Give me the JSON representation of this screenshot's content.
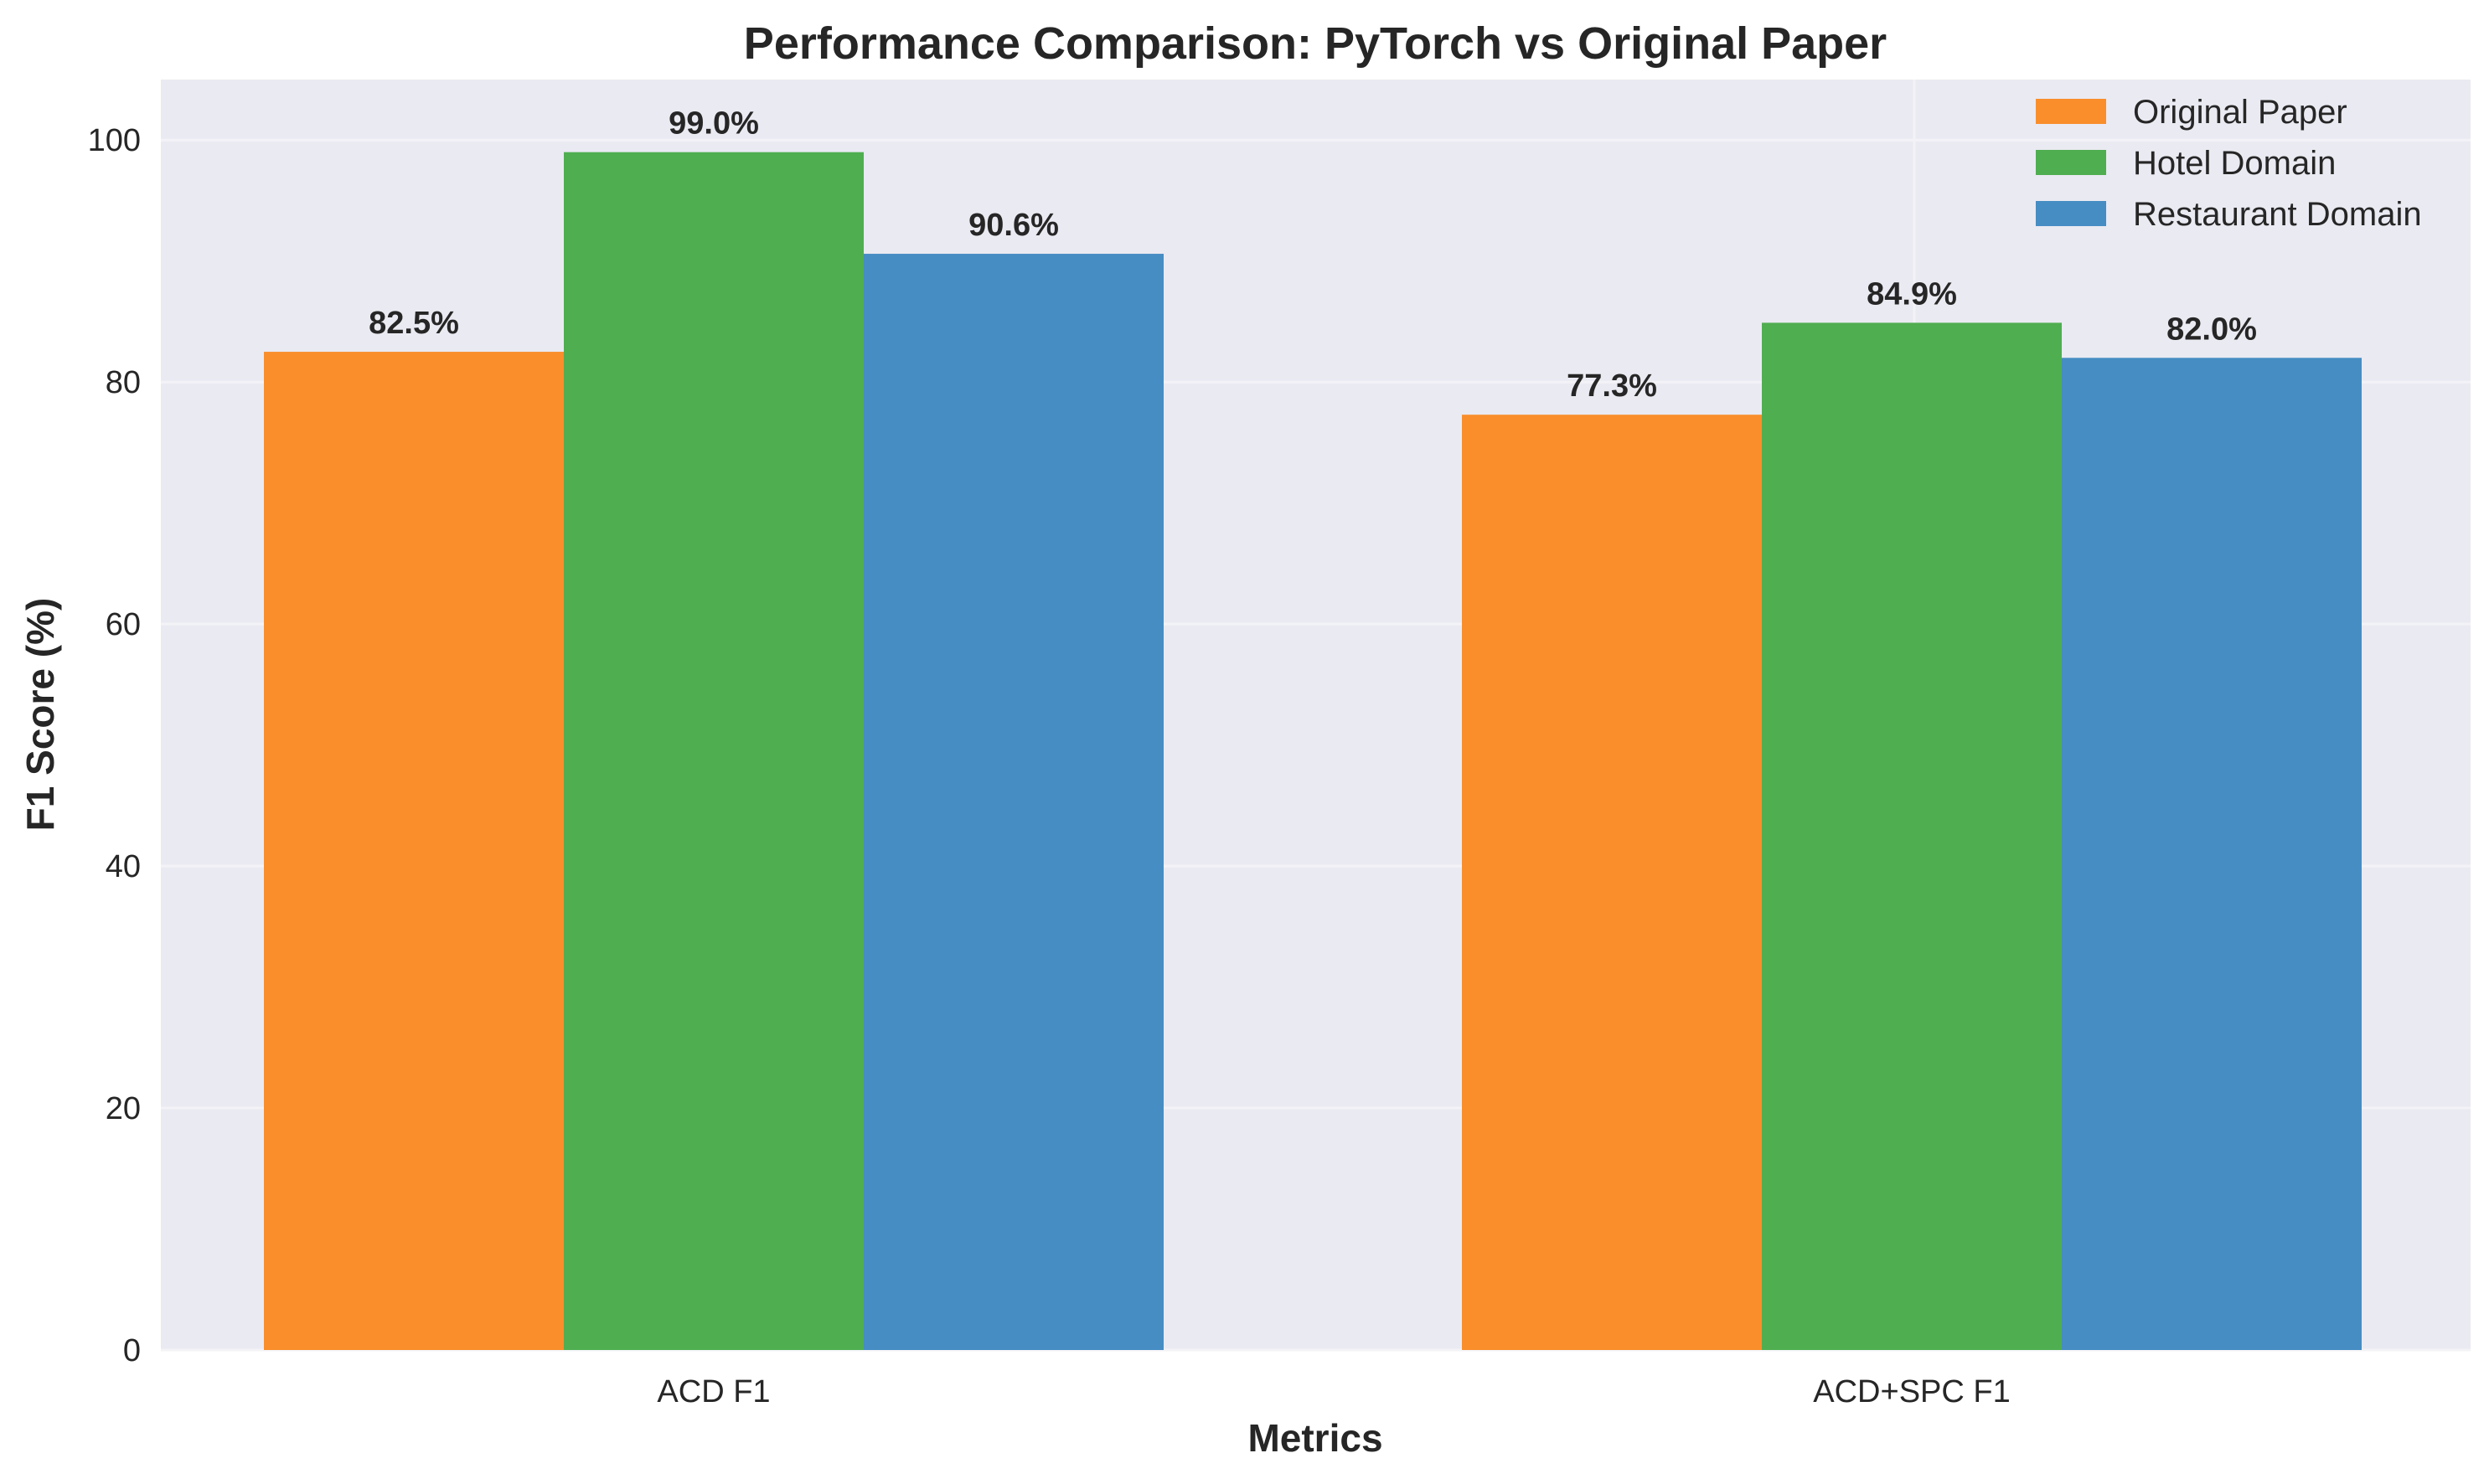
{
  "chart_data": {
    "type": "bar",
    "title": "Performance Comparison: PyTorch vs Original Paper",
    "xlabel": "Metrics",
    "ylabel": "F1 Score (%)",
    "categories": [
      "ACD F1",
      "ACD+SPC F1"
    ],
    "series": [
      {
        "name": "Original Paper",
        "values": [
          82.5,
          77.3
        ],
        "labels": [
          "82.5%",
          "77.3%"
        ],
        "color": "#f98e2b"
      },
      {
        "name": "Hotel Domain",
        "values": [
          99.0,
          84.9
        ],
        "labels": [
          "99.0%",
          "84.9%"
        ],
        "color": "#4fae50"
      },
      {
        "name": "Restaurant Domain",
        "values": [
          90.6,
          82.0
        ],
        "labels": [
          "90.6%",
          "82.0%"
        ],
        "color": "#468dc3"
      }
    ],
    "ylim": [
      0,
      105
    ],
    "yticks": [
      "0",
      "20",
      "40",
      "60",
      "80",
      "100"
    ],
    "grid": true,
    "legend_position": "top-right",
    "background_color": "#eaeaf2"
  }
}
